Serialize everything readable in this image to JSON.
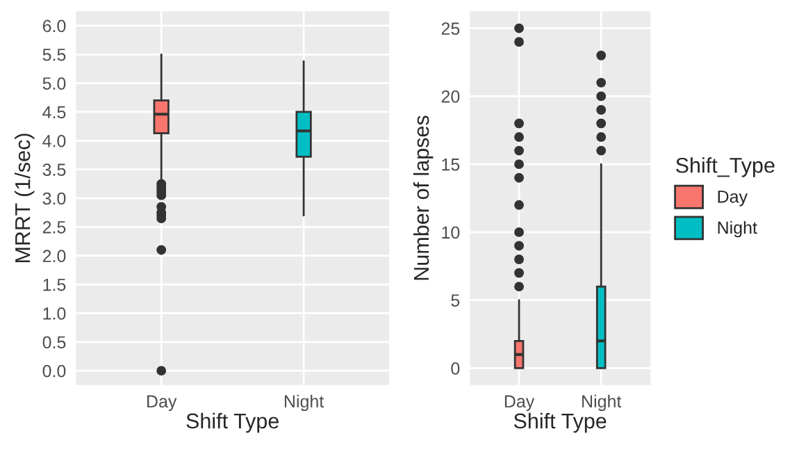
{
  "chart_data": [
    {
      "type": "box",
      "xlabel": "Shift Type",
      "ylabel": "MRRT (1/sec)",
      "categories": [
        "Day",
        "Night"
      ],
      "series": [
        {
          "color": "#f8766d",
          "boxes": [
            {
              "low": 3.3,
              "q1": 4.13,
              "median": 4.46,
              "q3": 4.7,
              "high": 5.5,
              "outliers": [
                3.25,
                3.2,
                3.15,
                3.1,
                3.05,
                2.85,
                2.75,
                2.7,
                2.65,
                2.1,
                0.0
              ]
            },
            null
          ]
        },
        {
          "color": "#00bfc4",
          "boxes": [
            null,
            {
              "low": 2.7,
              "q1": 3.72,
              "median": 4.17,
              "q3": 4.5,
              "high": 5.38
            }
          ]
        }
      ],
      "ylim": [
        -0.25,
        6.25
      ],
      "yticks": [
        {
          "value": 0,
          "label": "0.0"
        },
        {
          "value": 0.5,
          "label": "0.5"
        },
        {
          "value": 1,
          "label": "1.0"
        },
        {
          "value": 1.5,
          "label": "1.5"
        },
        {
          "value": 2,
          "label": "2.0"
        },
        {
          "value": 2.5,
          "label": "2.5"
        },
        {
          "value": 3,
          "label": "3.0"
        },
        {
          "value": 3.5,
          "label": "3.5"
        },
        {
          "value": 4,
          "label": "4.0"
        },
        {
          "value": 4.5,
          "label": "4.5"
        },
        {
          "value": 5,
          "label": "5.0"
        },
        {
          "value": 5.5,
          "label": "5.5"
        },
        {
          "value": 6,
          "label": "6.0"
        }
      ],
      "grid": true
    },
    {
      "type": "box",
      "xlabel": "Shift Type",
      "ylabel": "Number of lapses",
      "legend_title": "Shift_Type",
      "categories": [
        "Day",
        "Night"
      ],
      "series": [
        {
          "name": "Day",
          "color": "#f8766d",
          "boxes": [
            {
              "low": 0,
              "q1": 0,
              "median": 1,
              "q3": 2,
              "high": 5,
              "outliers": [
                6,
                7,
                8,
                9,
                10,
                12,
                14,
                15,
                16,
                17,
                18,
                24,
                25
              ]
            },
            null
          ]
        },
        {
          "name": "Night",
          "color": "#00bfc4",
          "boxes": [
            null,
            {
              "low": 0,
              "q1": 0,
              "median": 2,
              "q3": 6,
              "high": 15,
              "outliers": [
                16,
                17,
                18,
                19,
                20,
                21,
                23
              ]
            }
          ]
        }
      ],
      "ylim": [
        -1.25,
        26.25
      ],
      "yticks": [
        0,
        5,
        10,
        15,
        20,
        25
      ],
      "grid": true,
      "legend": "right"
    }
  ]
}
